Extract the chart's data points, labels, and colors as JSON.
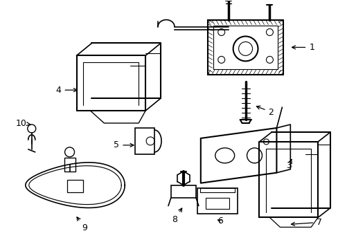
{
  "background_color": "#ffffff",
  "line_color": "#000000",
  "label_color": "#000000",
  "line_width": 1.2,
  "fig_width": 4.89,
  "fig_height": 3.6,
  "dpi": 100,
  "parts": [
    {
      "id": "1"
    },
    {
      "id": "2"
    },
    {
      "id": "3"
    },
    {
      "id": "4"
    },
    {
      "id": "5"
    },
    {
      "id": "6"
    },
    {
      "id": "7"
    },
    {
      "id": "8"
    },
    {
      "id": "9"
    },
    {
      "id": "10"
    }
  ]
}
